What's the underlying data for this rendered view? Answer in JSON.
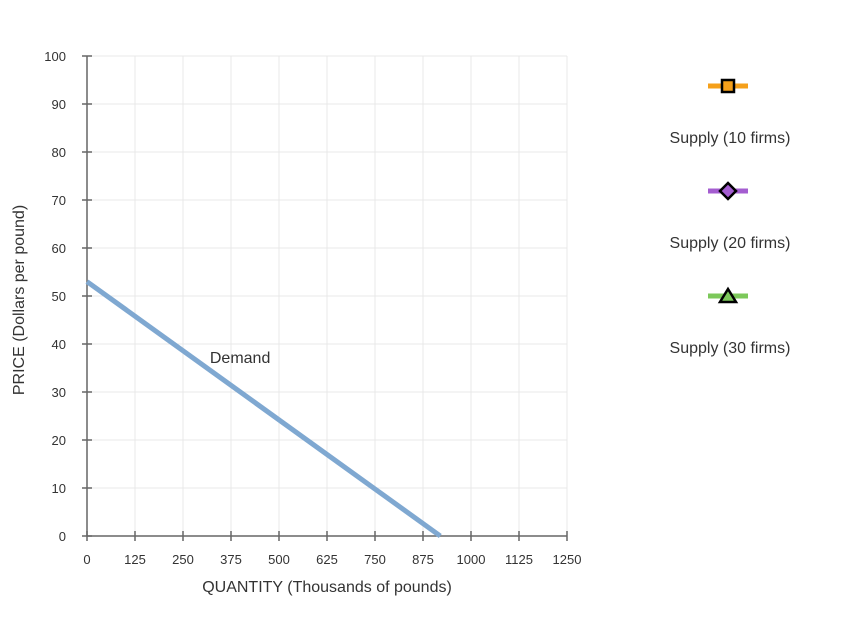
{
  "chart_data": {
    "type": "line",
    "xlabel": "QUANTITY (Thousands of pounds)",
    "ylabel": "PRICE (Dollars per pound)",
    "xlim": [
      0,
      1250
    ],
    "ylim": [
      0,
      100
    ],
    "xticks": [
      "0",
      "125",
      "250",
      "375",
      "500",
      "625",
      "750",
      "875",
      "1000",
      "1125",
      "1250"
    ],
    "yticks": [
      "0",
      "10",
      "20",
      "30",
      "40",
      "50",
      "60",
      "70",
      "80",
      "90",
      "100"
    ],
    "grid": true,
    "legend_position": "right",
    "series": [
      {
        "name": "Demand",
        "color": "#7fa8d1",
        "x": [
          0,
          920
        ],
        "y": [
          53,
          0
        ],
        "label_at": {
          "x": 320,
          "y": 36
        }
      }
    ],
    "legend": [
      {
        "label": "Supply (10 firms)",
        "color": "#f5a01a",
        "marker": "square",
        "marker_icon": "square-marker-icon"
      },
      {
        "label": "Supply (20 firms)",
        "color": "#a45dd0",
        "marker": "diamond",
        "marker_icon": "diamond-marker-icon"
      },
      {
        "label": "Supply (30 firms)",
        "color": "#7cc85a",
        "marker": "triangle",
        "marker_icon": "triangle-marker-icon"
      }
    ]
  }
}
